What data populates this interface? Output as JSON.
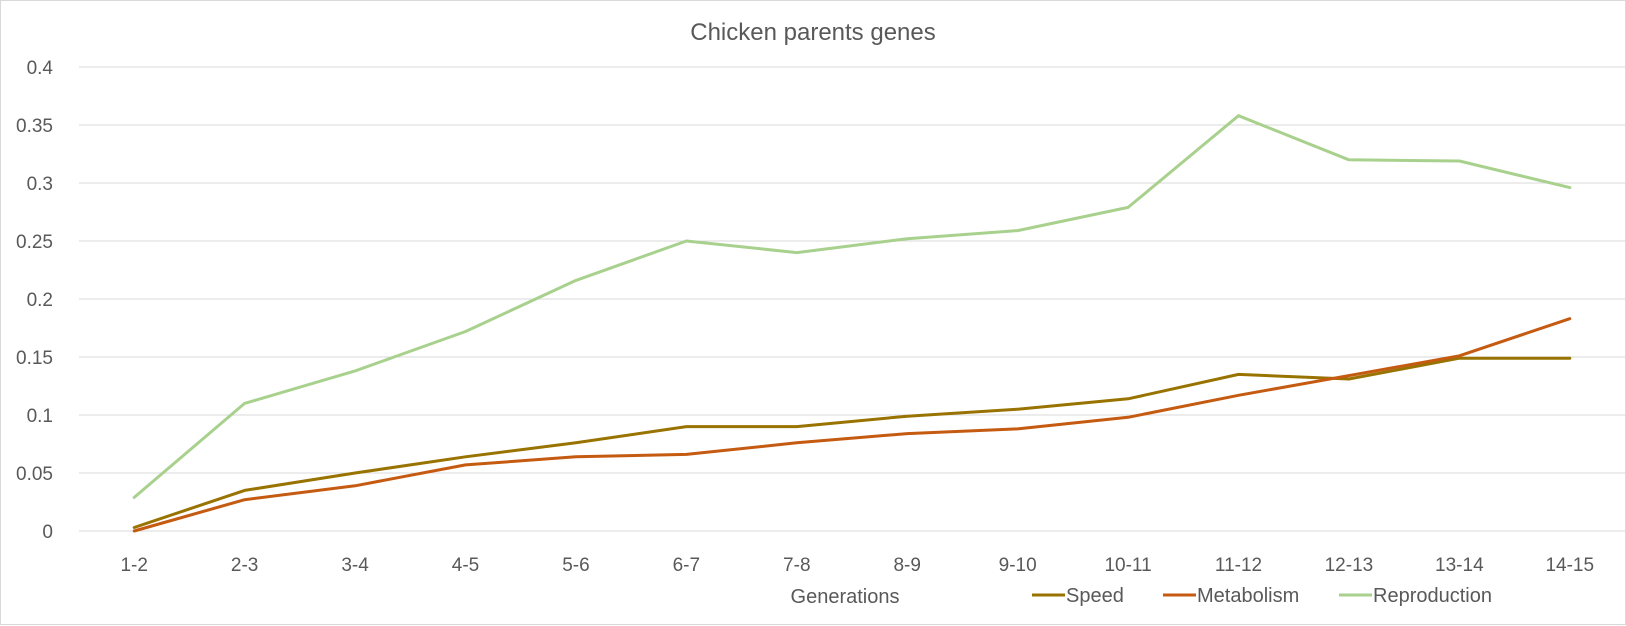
{
  "chart_data": {
    "type": "line",
    "title": "Chicken parents genes",
    "xlabel": "Generations",
    "ylabel": "",
    "categories": [
      "1-2",
      "2-3",
      "3-4",
      "4-5",
      "5-6",
      "6-7",
      "7-8",
      "8-9",
      "9-10",
      "10-11",
      "11-12",
      "12-13",
      "13-14",
      "14-15"
    ],
    "ylim": [
      0,
      0.4
    ],
    "yticks": [
      "0",
      "0.05",
      "0.1",
      "0.15",
      "0.2",
      "0.25",
      "0.3",
      "0.35",
      "0.4"
    ],
    "grid": true,
    "legend_position": "bottom-right",
    "series": [
      {
        "name": "Speed",
        "color": "#997300",
        "values": [
          0.003,
          0.035,
          0.05,
          0.064,
          0.076,
          0.09,
          0.09,
          0.099,
          0.105,
          0.114,
          0.135,
          0.131,
          0.149,
          0.149
        ]
      },
      {
        "name": "Metabolism",
        "color": "#c55a11",
        "values": [
          0.0,
          0.027,
          0.039,
          0.057,
          0.064,
          0.066,
          0.076,
          0.084,
          0.088,
          0.098,
          0.117,
          0.134,
          0.151,
          0.183
        ]
      },
      {
        "name": "Reproduction",
        "color": "#a9d18e",
        "values": [
          0.029,
          0.11,
          0.138,
          0.172,
          0.216,
          0.25,
          0.24,
          0.252,
          0.259,
          0.279,
          0.358,
          0.32,
          0.319,
          0.296
        ]
      }
    ]
  }
}
